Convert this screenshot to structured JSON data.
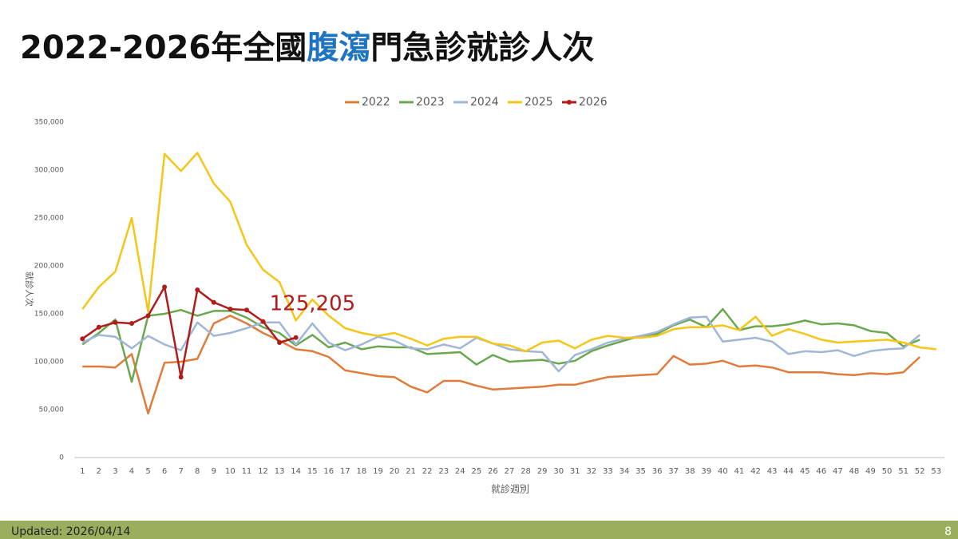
{
  "title_parts": [
    "2022-2026年全國",
    "腹瀉",
    "門急診就診人次"
  ],
  "footer": {
    "updated": "Updated: 2026/04/14",
    "page": "8"
  },
  "chart_data": {
    "type": "line",
    "x_label": "就診週別",
    "y_label": "就診人次",
    "categories": [
      "1",
      "2",
      "3",
      "4",
      "5",
      "6",
      "7",
      "8",
      "9",
      "10",
      "11",
      "12",
      "13",
      "14",
      "15",
      "16",
      "17",
      "18",
      "19",
      "20",
      "21",
      "22",
      "23",
      "24",
      "25",
      "26",
      "27",
      "28",
      "29",
      "30",
      "31",
      "32",
      "33",
      "34",
      "35",
      "36",
      "37",
      "38",
      "39",
      "40",
      "41",
      "42",
      "43",
      "44",
      "45",
      "46",
      "47",
      "48",
      "49",
      "50",
      "51",
      "52",
      "53"
    ],
    "ylim": [
      0,
      350000
    ],
    "yticks": [
      0,
      {
        "value": 50000,
        "label": "50,000"
      },
      {
        "value": 100000,
        "label": "100,000"
      },
      {
        "value": 150000,
        "label": "150,000"
      },
      {
        "value": 200000,
        "label": "200,000"
      },
      {
        "value": 250000,
        "label": "250,000"
      },
      {
        "value": 300000,
        "label": "300,000"
      },
      {
        "value": 350000,
        "label": "350,000"
      }
    ],
    "grid": false,
    "legend": "top",
    "series": [
      {
        "name": "2022",
        "color": "#e07b39",
        "values": [
          95000,
          95000,
          94000,
          108000,
          46000,
          99000,
          100000,
          103000,
          140000,
          148000,
          140000,
          130000,
          122000,
          113000,
          111000,
          105000,
          91000,
          88000,
          85000,
          84000,
          74000,
          68000,
          80000,
          80000,
          75000,
          71000,
          72000,
          73000,
          74000,
          76000,
          76000,
          80000,
          84000,
          85000,
          86000,
          87000,
          106000,
          97000,
          98000,
          101000,
          95000,
          96000,
          94000,
          89000,
          89000,
          89000,
          87000,
          86000,
          88000,
          87000,
          89000,
          105000,
          null
        ]
      },
      {
        "name": "2023",
        "color": "#6aa84f",
        "values": [
          118000,
          130000,
          144000,
          79000,
          148000,
          150000,
          154000,
          148000,
          153000,
          153000,
          146000,
          136000,
          130000,
          117000,
          128000,
          115000,
          120000,
          113000,
          116000,
          115000,
          115000,
          108000,
          109000,
          110000,
          97000,
          107000,
          100000,
          101000,
          102000,
          98000,
          101000,
          111000,
          117000,
          122000,
          127000,
          129000,
          138000,
          144000,
          136000,
          155000,
          133000,
          137000,
          137000,
          139000,
          143000,
          139000,
          140000,
          138000,
          132000,
          130000,
          116000,
          123000,
          null
        ]
      },
      {
        "name": "2024",
        "color": "#9fb6d6",
        "values": [
          120000,
          128000,
          126000,
          114000,
          127000,
          118000,
          112000,
          141000,
          127000,
          130000,
          135000,
          141000,
          141000,
          118000,
          140000,
          120000,
          112000,
          118000,
          126000,
          122000,
          114000,
          113000,
          118000,
          114000,
          125000,
          119000,
          113000,
          111000,
          110000,
          90000,
          107000,
          113000,
          120000,
          124000,
          127000,
          131000,
          139000,
          146000,
          147000,
          121000,
          123000,
          125000,
          121000,
          108000,
          111000,
          110000,
          112000,
          106000,
          111000,
          113000,
          114000,
          128000,
          null
        ]
      },
      {
        "name": "2025",
        "color": "#f5c518",
        "values": [
          155000,
          178000,
          194000,
          250000,
          152000,
          317000,
          299000,
          318000,
          286000,
          267000,
          222000,
          196000,
          183000,
          143000,
          165000,
          148000,
          135000,
          130000,
          127000,
          130000,
          124000,
          117000,
          124000,
          126000,
          126000,
          119000,
          117000,
          111000,
          120000,
          122000,
          114000,
          123000,
          127000,
          125000,
          125000,
          127000,
          134000,
          136000,
          136000,
          138000,
          133000,
          147000,
          127000,
          134000,
          129000,
          123000,
          120000,
          121000,
          122000,
          123000,
          120000,
          115000,
          113000
        ]
      },
      {
        "name": "2026",
        "color": "#b01c1c",
        "markers": true,
        "values": [
          124000,
          136000,
          141000,
          140000,
          148000,
          178000,
          84000,
          175000,
          162000,
          155000,
          154000,
          142000,
          120000,
          125205,
          null,
          null,
          null,
          null,
          null,
          null,
          null,
          null,
          null,
          null,
          null,
          null,
          null,
          null,
          null,
          null,
          null,
          null,
          null,
          null,
          null,
          null,
          null,
          null,
          null,
          null,
          null,
          null,
          null,
          null,
          null,
          null,
          null,
          null,
          null,
          null,
          null,
          null,
          null
        ],
        "value_labels": [
          null,
          null,
          null,
          null,
          null,
          null,
          null,
          null,
          null,
          null,
          null,
          null,
          null,
          "125,205",
          null,
          null,
          null,
          null,
          null,
          null,
          null,
          null,
          null,
          null,
          null,
          null,
          null,
          null,
          null,
          null,
          null,
          null,
          null,
          null,
          null,
          null,
          null,
          null,
          null,
          null,
          null,
          null,
          null,
          null,
          null,
          null,
          null,
          null,
          null,
          null,
          null,
          null,
          null
        ]
      }
    ]
  }
}
